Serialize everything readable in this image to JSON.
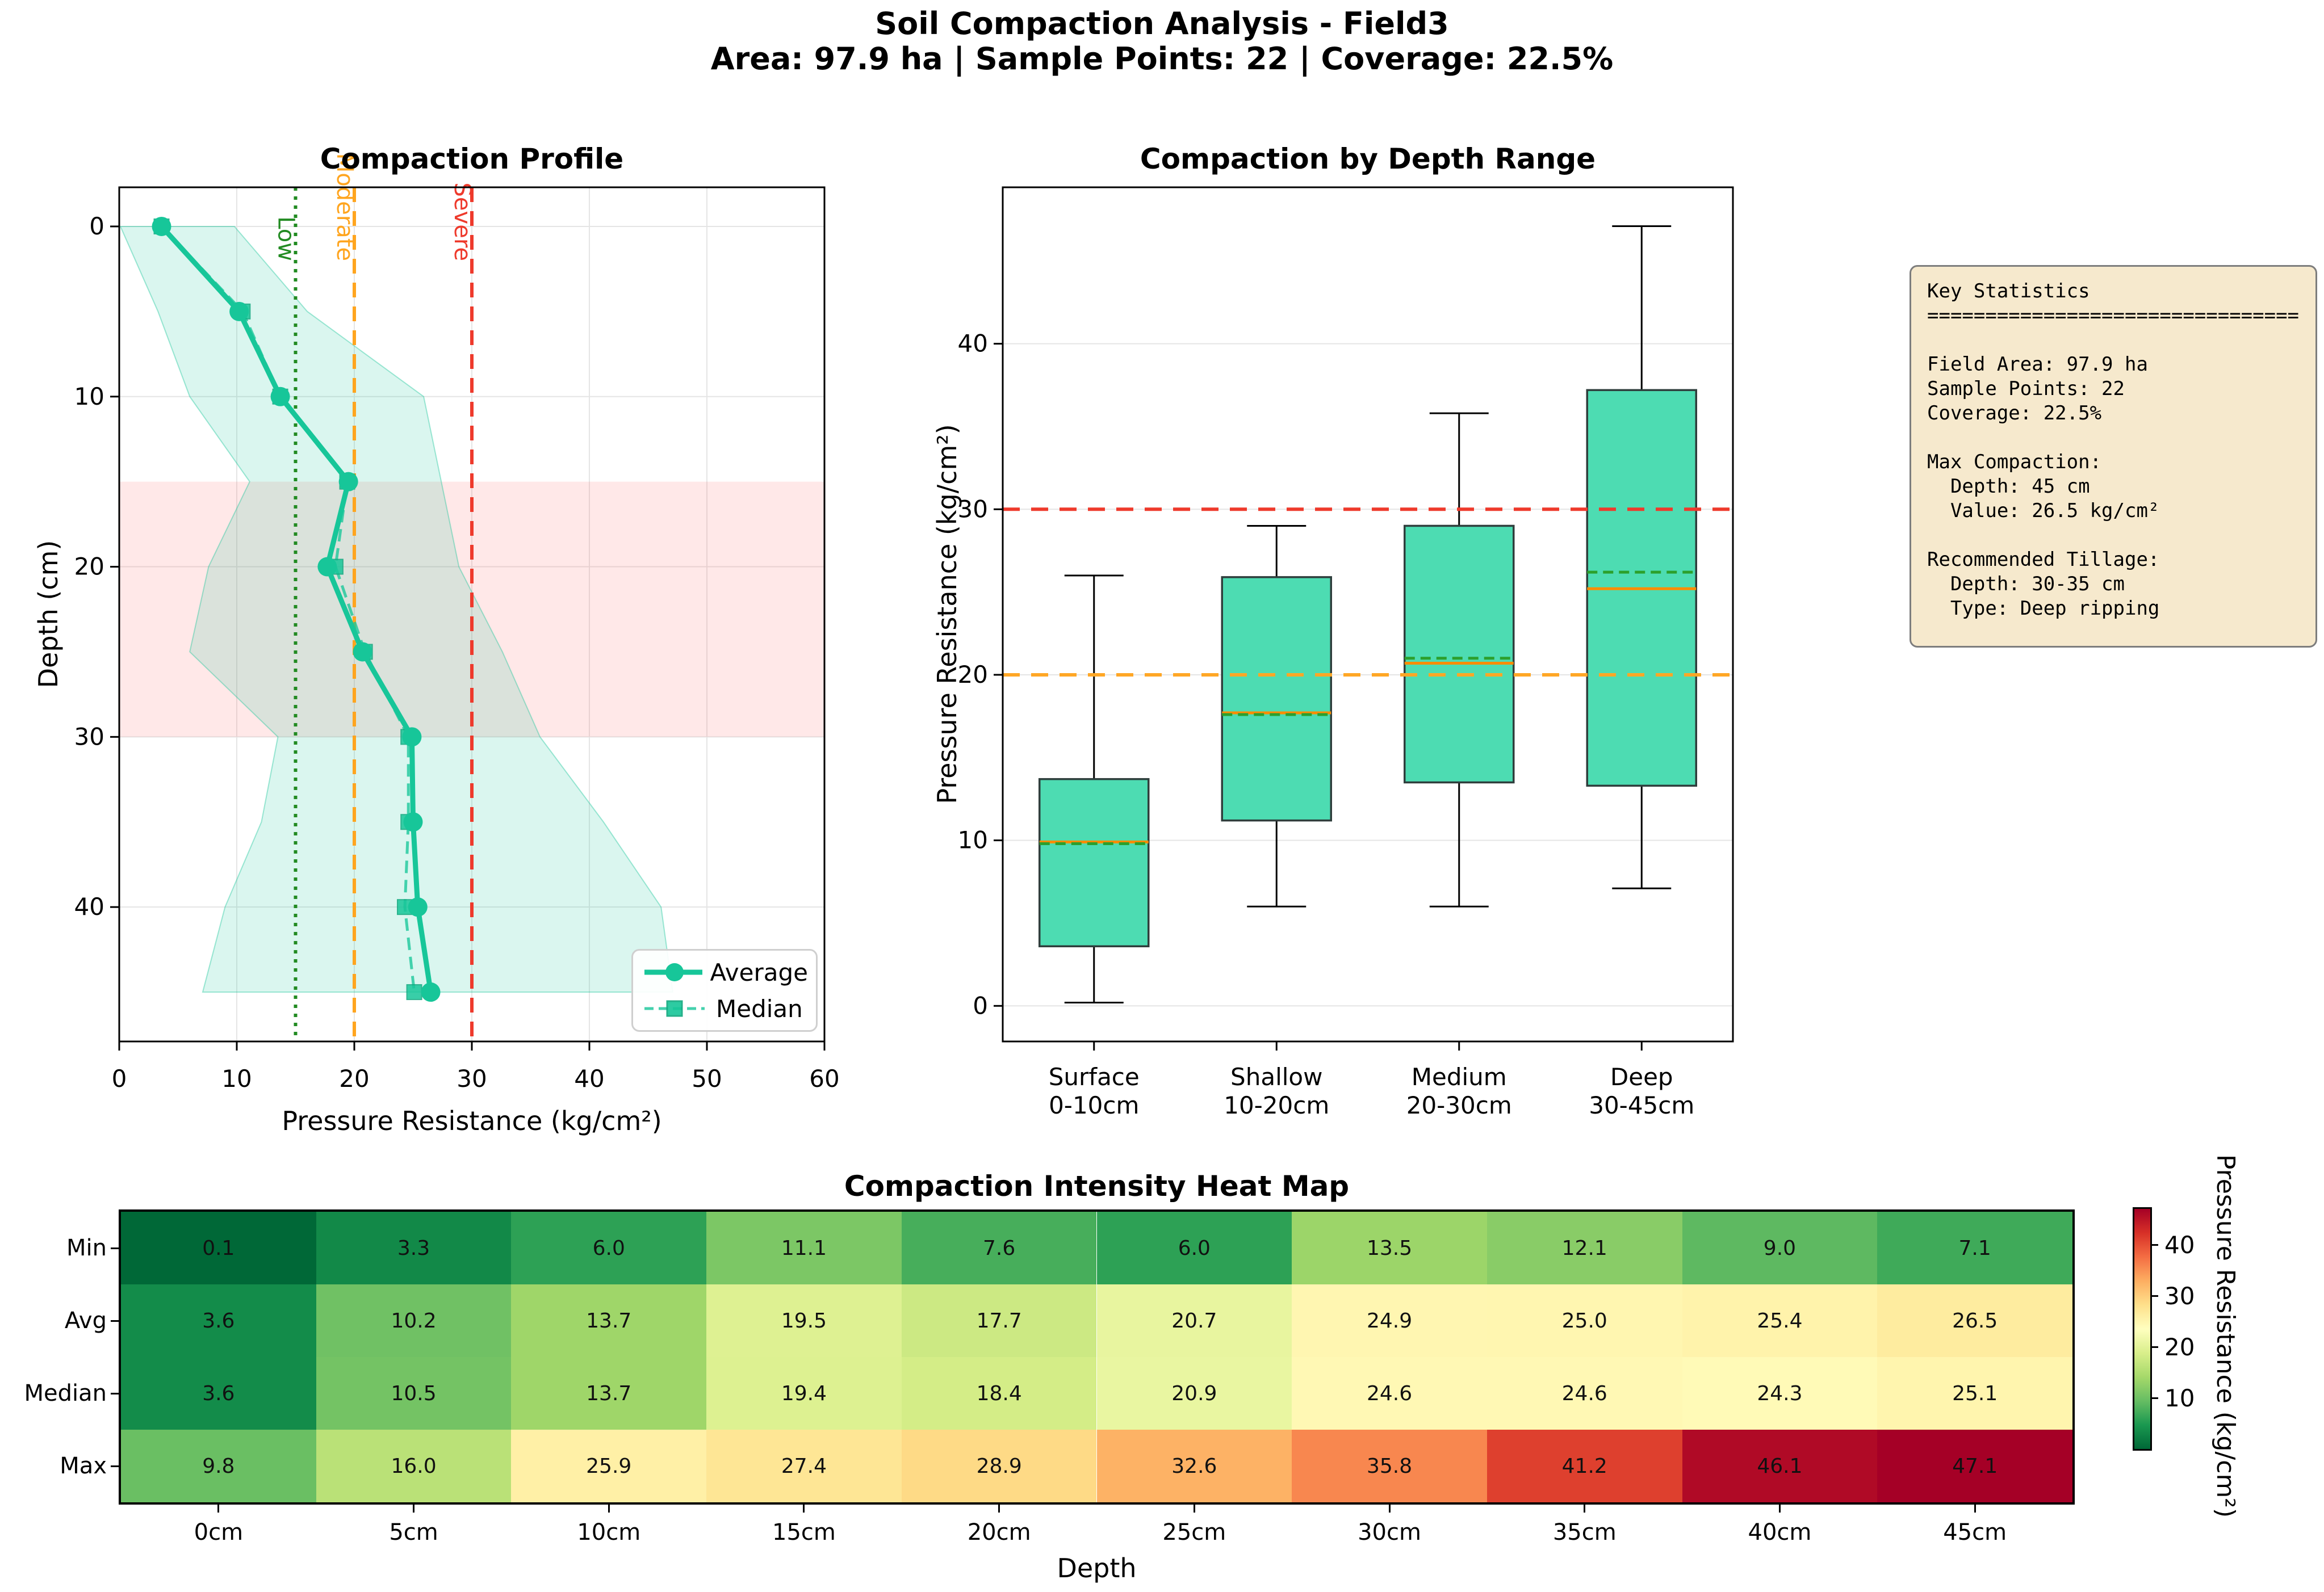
{
  "header": {
    "title": "Soil Compaction Analysis - Field3",
    "subtitle": "Area: 97.9 ha | Sample Points: 22 | Coverage: 22.5%"
  },
  "chart_data": [
    {
      "type": "line",
      "id": "compaction-profile",
      "title": "Compaction Profile",
      "xlabel": "Pressure Resistance (kg/cm²)",
      "ylabel": "Depth (cm)",
      "xlim": [
        0,
        60
      ],
      "x_ticks": [
        0,
        10,
        20,
        30,
        40,
        50,
        60
      ],
      "y_ticks": [
        0,
        10,
        20,
        30,
        40
      ],
      "depths": [
        0,
        5,
        10,
        15,
        20,
        25,
        30,
        35,
        40,
        45
      ],
      "series": [
        {
          "name": "Average",
          "values": [
            3.6,
            10.2,
            13.7,
            19.5,
            17.7,
            20.7,
            24.9,
            25.0,
            25.4,
            26.5
          ]
        },
        {
          "name": "Median",
          "values": [
            3.6,
            10.5,
            13.7,
            19.4,
            18.4,
            20.9,
            24.6,
            24.6,
            24.3,
            25.1
          ]
        }
      ],
      "band": {
        "min": [
          0.1,
          3.3,
          6.0,
          11.1,
          7.6,
          6.0,
          13.5,
          12.1,
          9.0,
          7.1
        ],
        "max": [
          9.8,
          16.0,
          25.9,
          27.4,
          28.9,
          32.6,
          35.8,
          41.2,
          46.1,
          47.1
        ]
      },
      "thresholds": [
        {
          "label": "Low",
          "value": 15,
          "color": "#228b22",
          "dash": "dotted"
        },
        {
          "label": "Moderate",
          "value": 20,
          "color": "#ffa51f",
          "dash": "dashed"
        },
        {
          "label": "Severe",
          "value": 30,
          "color": "#ee3a2c",
          "dash": "dashed"
        }
      ],
      "zone": {
        "from": 15,
        "to": 30,
        "color": "rgba(255,77,77,0.13)"
      },
      "legend": [
        "Average",
        "Median"
      ]
    },
    {
      "type": "box",
      "id": "compaction-by-depth-range",
      "title": "Compaction by Depth Range",
      "ylabel": "Pressure Resistance (kg/cm²)",
      "y_ticks": [
        0,
        10,
        20,
        30,
        40
      ],
      "categories": [
        {
          "name": "Surface",
          "range": "0-10cm"
        },
        {
          "name": "Shallow",
          "range": "10-20cm"
        },
        {
          "name": "Medium",
          "range": "20-30cm"
        },
        {
          "name": "Deep",
          "range": "30-45cm"
        }
      ],
      "boxes": [
        {
          "whisker_low": 0.2,
          "q1": 3.6,
          "median": 9.9,
          "mean": 9.8,
          "q3": 13.7,
          "whisker_high": 26.0
        },
        {
          "whisker_low": 6.0,
          "q1": 11.2,
          "median": 17.7,
          "mean": 17.6,
          "q3": 25.9,
          "whisker_high": 29.0
        },
        {
          "whisker_low": 6.0,
          "q1": 13.5,
          "median": 20.7,
          "mean": 21.0,
          "q3": 29.0,
          "whisker_high": 35.8
        },
        {
          "whisker_low": 7.1,
          "q1": 13.3,
          "median": 25.2,
          "mean": 26.2,
          "q3": 37.2,
          "whisker_high": 47.1
        }
      ],
      "hlines": [
        {
          "value": 30,
          "color": "#ee3a2c"
        },
        {
          "value": 20,
          "color": "#ffa726"
        }
      ]
    },
    {
      "type": "heatmap",
      "id": "compaction-intensity-heat-map",
      "title": "Compaction Intensity Heat Map",
      "xlabel": "Depth",
      "rows": [
        "Min",
        "Avg",
        "Median",
        "Max"
      ],
      "cols": [
        "0cm",
        "5cm",
        "10cm",
        "15cm",
        "20cm",
        "25cm",
        "30cm",
        "35cm",
        "40cm",
        "45cm"
      ],
      "values": [
        [
          0.1,
          3.3,
          6.0,
          11.1,
          7.6,
          6.0,
          13.5,
          12.1,
          9.0,
          7.1
        ],
        [
          3.6,
          10.2,
          13.7,
          19.5,
          17.7,
          20.7,
          24.9,
          25.0,
          25.4,
          26.5
        ],
        [
          3.6,
          10.5,
          13.7,
          19.4,
          18.4,
          20.9,
          24.6,
          24.6,
          24.3,
          25.1
        ],
        [
          9.8,
          16.0,
          25.9,
          27.4,
          28.9,
          32.6,
          35.8,
          41.2,
          46.1,
          47.1
        ]
      ],
      "vmin": 0.1,
      "vmax": 47.1,
      "colorbar": {
        "ticks": [
          10,
          20,
          30,
          40
        ],
        "label": "Pressure Resistance (kg/cm²)",
        "colormap_red_to_green": [
          "#a50026",
          "#d73027",
          "#f46d43",
          "#fdae61",
          "#fee08b",
          "#ffffbf",
          "#d9ef8b",
          "#a6d96a",
          "#66bd63",
          "#1a9850",
          "#006837"
        ]
      }
    }
  ],
  "stats_panel": {
    "lines": [
      "Key Statistics",
      "================================",
      "",
      "Field Area: 97.9 ha",
      "Sample Points: 22",
      "Coverage: 22.5%",
      "",
      "Max Compaction:",
      "  Depth: 45 cm",
      "  Value: 26.5 kg/cm²",
      "",
      "Recommended Tillage:",
      "  Depth: 30-35 cm",
      "  Type: Deep ripping"
    ]
  },
  "colors": {
    "accent_emerald": "#17c699",
    "box_fill": "#4ddcb2",
    "box_edge": "#2f3e3c",
    "median_orange": "#ff8c00",
    "mean_green": "#2ca02c",
    "grid": "#e5e5e5",
    "stats_bg": "#f6e9cd"
  }
}
